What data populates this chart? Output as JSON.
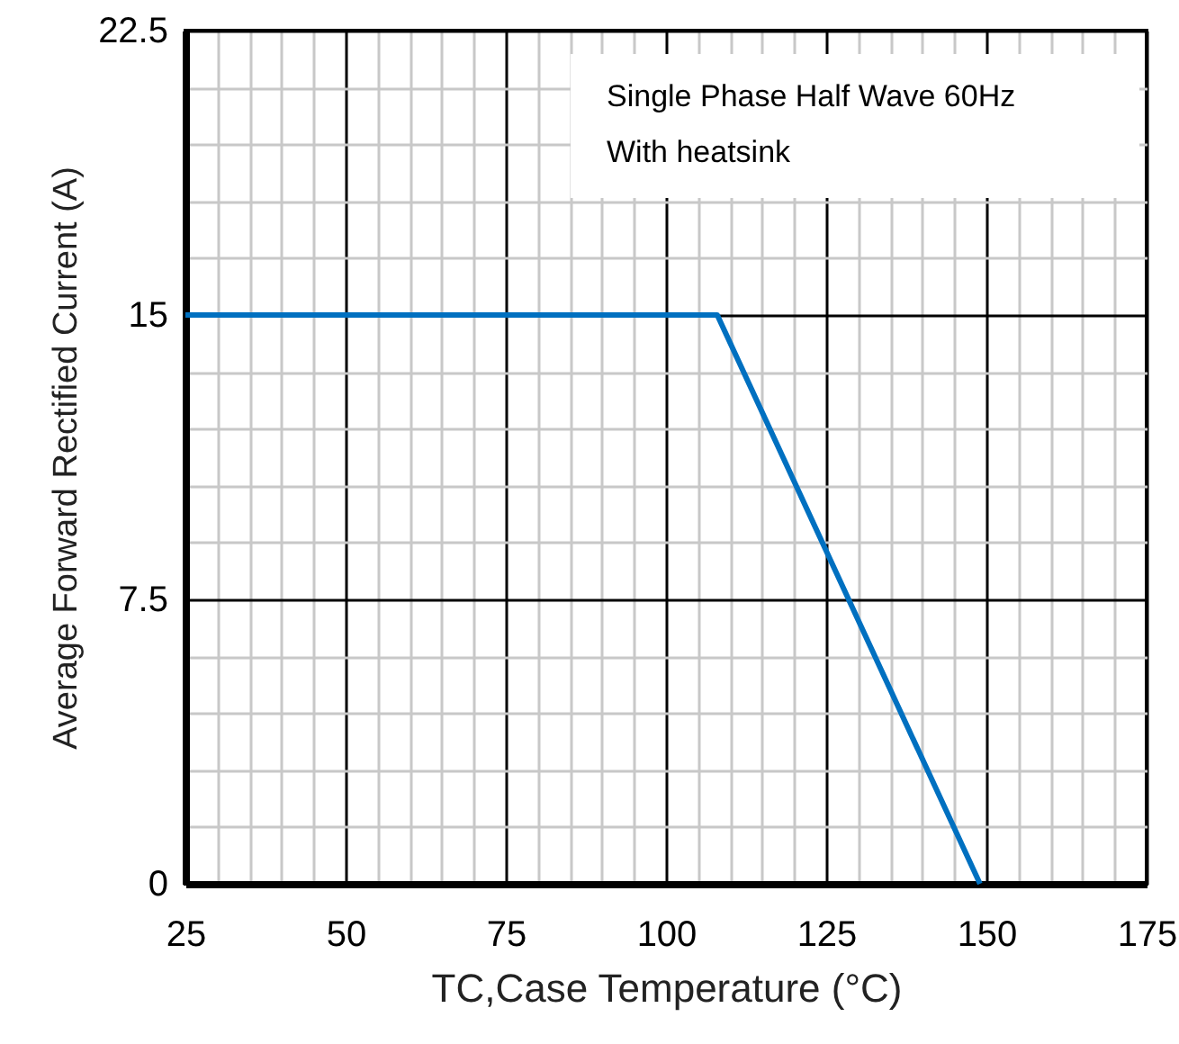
{
  "chart_data": {
    "type": "line",
    "xlabel": "TC,Case Temperature (°C)",
    "ylabel": "Average Forward Rectified Current (A)",
    "annotations": [
      "Single Phase Half Wave 60Hz",
      "With heatsink"
    ],
    "x": [
      25,
      108,
      149
    ],
    "series": [
      {
        "color": "#0070c0",
        "values": [
          15,
          15,
          0
        ]
      }
    ],
    "xlim": [
      25,
      175
    ],
    "xticks": [
      25,
      50,
      75,
      100,
      125,
      150,
      175
    ],
    "ylim": [
      0,
      22.5
    ],
    "yticks": [
      0,
      7.5,
      15,
      22.5
    ],
    "grid": true,
    "marker": "none",
    "line_style": "solid"
  }
}
